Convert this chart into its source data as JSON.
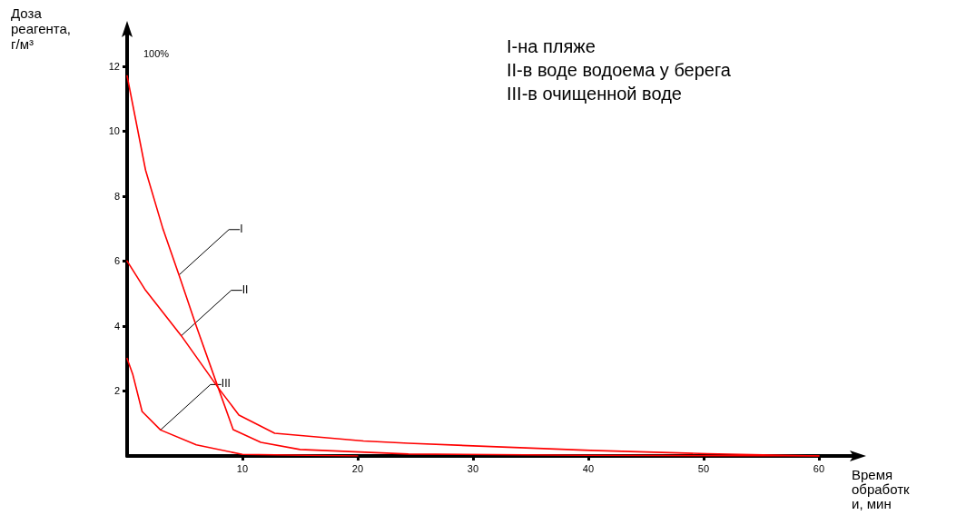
{
  "chart_data": {
    "type": "line",
    "xlabel": "Время обработки, мин",
    "ylabel": "Доза реагента, г/м³",
    "x": [
      0,
      1.6,
      3.1,
      4.5,
      6.0,
      7.9,
      9.2,
      11.6,
      15,
      24.4,
      40,
      60
    ],
    "series": [
      {
        "color": "#ff0000",
        "values": [
          11.7,
          8.8,
          7.0,
          5.57,
          4.0,
          2.1,
          0.81,
          0.42,
          0.2,
          0.06,
          0.02,
          0
        ]
      },
      {
        "color": "#ff0000",
        "x": [
          0,
          1.6,
          4.7,
          7.9,
          9.7,
          12.8,
          20.5,
          24.4,
          40.2,
          50.3,
          60
        ],
        "values": [
          6.0,
          5.1,
          3.7,
          2.1,
          1.26,
          0.7,
          0.46,
          0.39,
          0.17,
          0.07,
          0
        ]
      },
      {
        "color": "#ff0000",
        "x": [
          0,
          0.5,
          1.3,
          2.9,
          6.0,
          10,
          20
        ],
        "values": [
          3.0,
          2.5,
          1.37,
          0.8,
          0.34,
          0.05,
          0
        ]
      }
    ],
    "xlim": [
      0,
      63
    ],
    "ylim": [
      0,
      13
    ],
    "xticks": [
      10,
      20,
      30,
      40,
      50,
      60
    ],
    "yticks": [
      2,
      4,
      6,
      8,
      10,
      12
    ],
    "grid": false,
    "marker": "none",
    "line_style": "solid",
    "annotations": [
      "100%",
      "I-на пляже",
      "II-в воде водоема у берега",
      "III-в очищенной воде",
      {
        "text": "I",
        "x": 4.5,
        "y": 5.57
      },
      {
        "text": "II",
        "x": 4.7,
        "y": 3.7
      },
      {
        "text": "III",
        "x": 2.9,
        "y": 0.8
      }
    ]
  }
}
